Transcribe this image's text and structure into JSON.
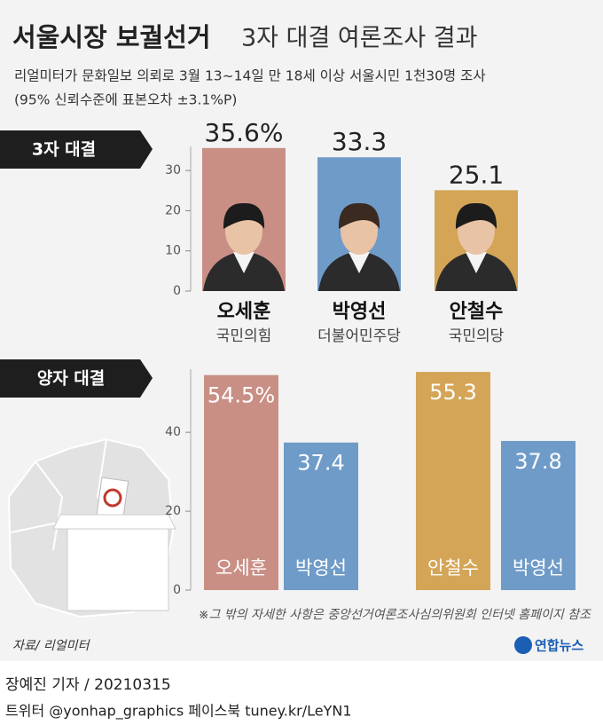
{
  "header": {
    "title_bold": "서울시장 보궐선거",
    "title_rest": "3자 대결 여론조사 결과",
    "subtitle_lines": [
      "리얼미터가 문화일보 의뢰로 3월 13~14일 만 18세 이상 서울시민 1천30명 조사",
      "(95% 신뢰수준에 표본오차 ±3.1%P)"
    ]
  },
  "chart_data": [
    {
      "type": "bar",
      "title": "3자 대결",
      "categories": [
        "오세훈",
        "박영선",
        "안철수"
      ],
      "parties": [
        "국민의힘",
        "더불어민주당",
        "국민의당"
      ],
      "values": [
        35.6,
        33.3,
        25.1
      ],
      "value_labels": [
        "35.6%",
        "33.3",
        "25.1"
      ],
      "colors": [
        "#c98f85",
        "#6f9bc8",
        "#d4a556"
      ],
      "ylim": [
        0,
        36
      ],
      "yticks": [
        0,
        10,
        20,
        30
      ]
    },
    {
      "type": "bar",
      "title": "양자 대결",
      "categories": [
        "오세훈",
        "박영선",
        "안철수",
        "박영선"
      ],
      "values": [
        54.5,
        37.4,
        55.3,
        37.8
      ],
      "value_labels": [
        "54.5%",
        "37.4",
        "55.3",
        "37.8"
      ],
      "colors": [
        "#c98f85",
        "#6f9bc8",
        "#d4a556",
        "#6f9bc8"
      ],
      "ylim": [
        0,
        56
      ],
      "yticks": [
        0,
        20,
        40
      ],
      "note": "※그 밖의 자세한 사항은 중앙선거여론조사심의위원회 인터넷 홈페이지 참조"
    }
  ],
  "footer": {
    "source": "자료/ 리얼미터",
    "logo": "연합뉴스",
    "reporter": "장예진 기자 / 20210315",
    "contact": "트위터 @yonhap_graphics  페이스북 tuney.kr/LeYN1"
  }
}
